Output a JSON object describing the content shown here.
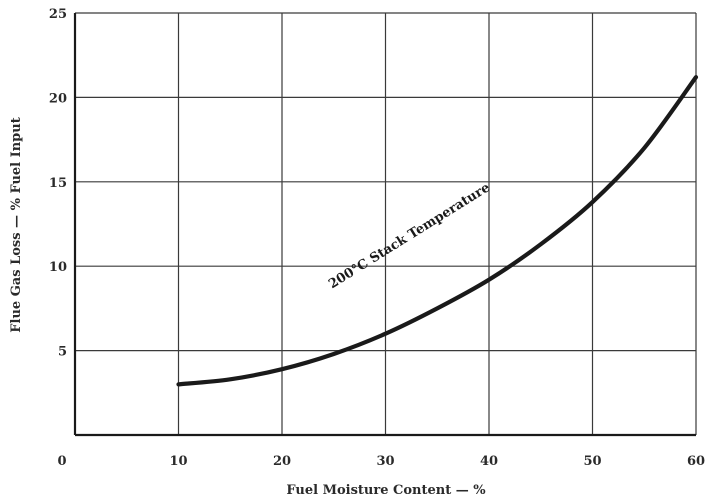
{
  "chart_data": {
    "type": "line",
    "title": "",
    "xlabel": "Fuel Moisture Content — %",
    "ylabel": "Flue Gas Loss — % Fuel Input",
    "xlim": [
      0,
      60
    ],
    "ylim": [
      0,
      25
    ],
    "x_ticks": [
      0,
      10,
      20,
      30,
      40,
      50,
      60
    ],
    "y_ticks": [
      5,
      10,
      15,
      20,
      25
    ],
    "grid": true,
    "legend": "none",
    "series": [
      {
        "name": "200°C Stack Temperature",
        "color": "#1a1a1a",
        "x": [
          10,
          15,
          20,
          25,
          30,
          35,
          40,
          45,
          50,
          55,
          60
        ],
        "y": [
          3.0,
          3.3,
          3.9,
          4.8,
          6.0,
          7.5,
          9.2,
          11.3,
          13.8,
          17.0,
          21.2
        ]
      }
    ],
    "annotations": [
      {
        "text": "200°C Stack Temperature",
        "x": 48,
        "y": 13.2
      }
    ]
  }
}
